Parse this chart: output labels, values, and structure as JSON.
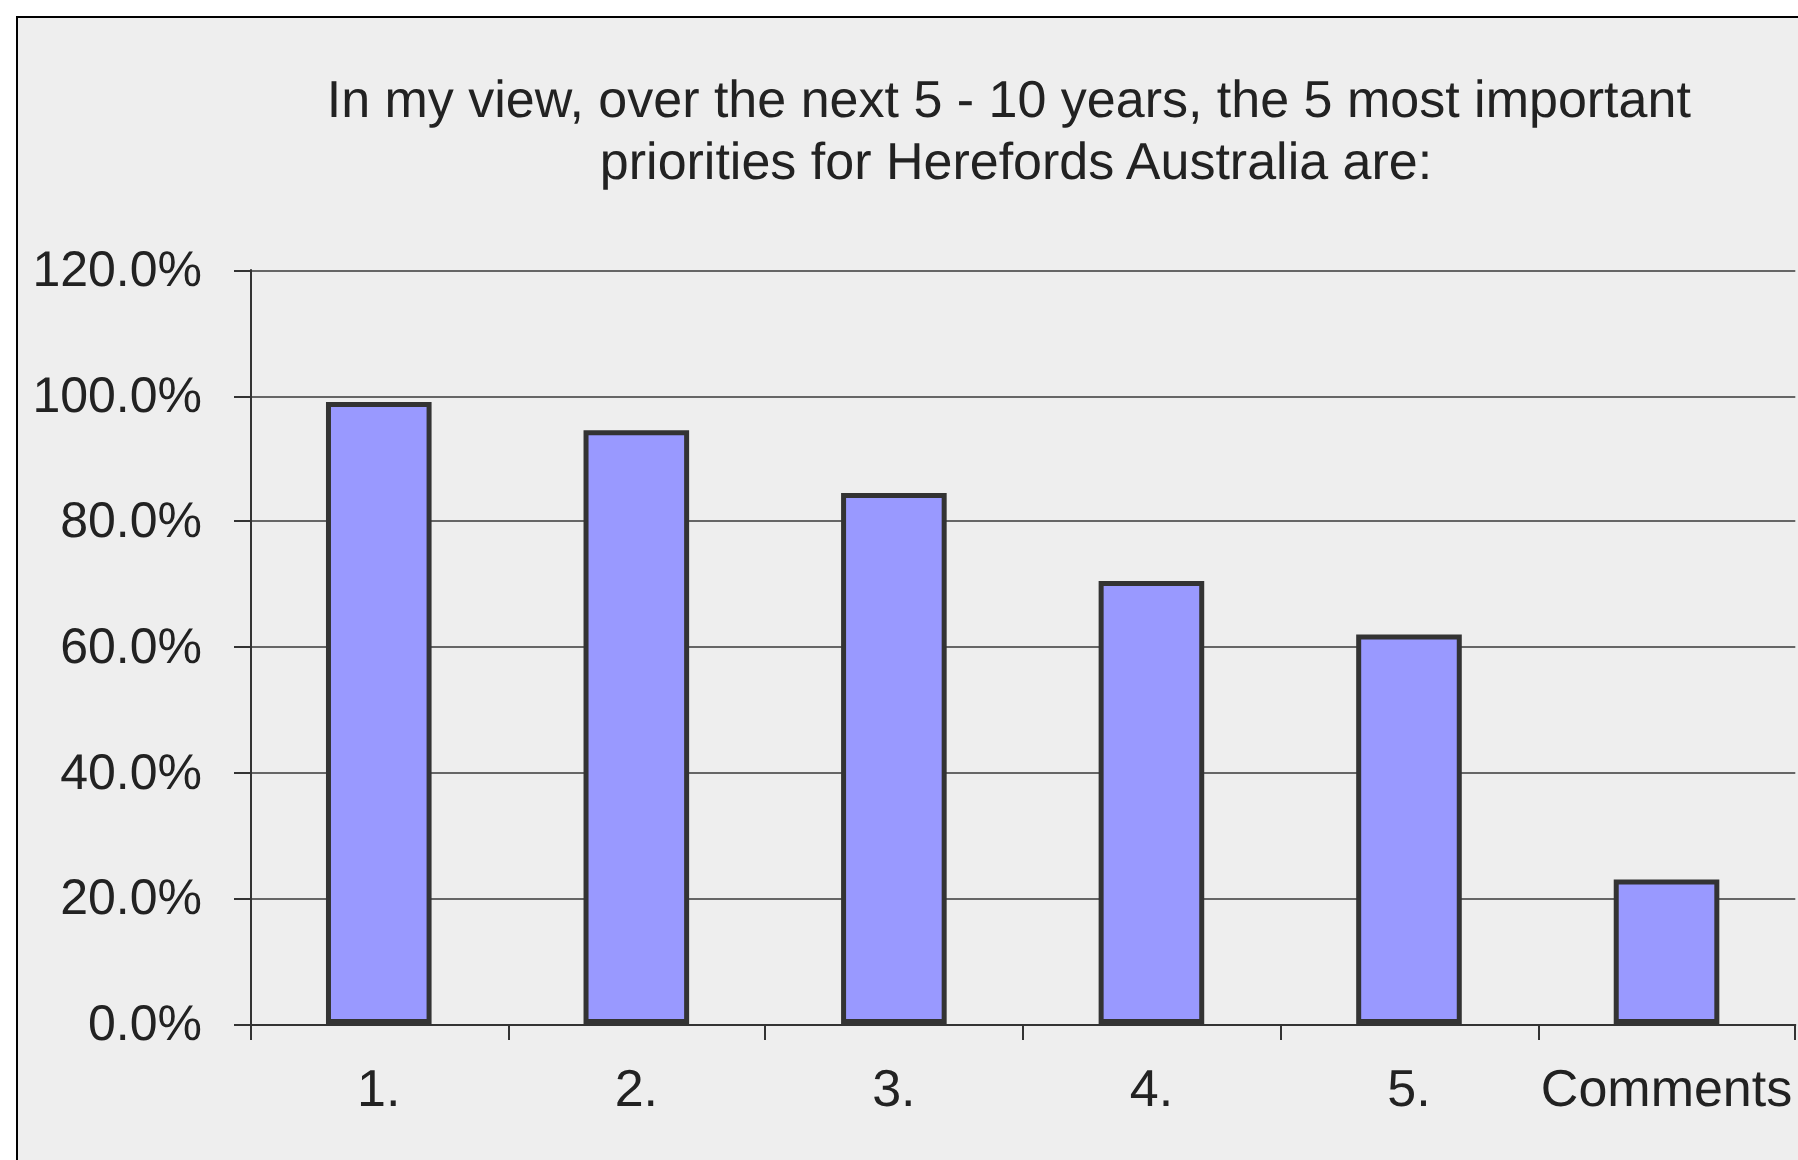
{
  "chart_data": {
    "type": "bar",
    "title": "In my view, over the next 5 - 10 years, the 5 most important priorities for Herefords Australia are:",
    "categories": [
      "1.",
      "2.",
      "3.",
      "4.",
      "5.",
      "Comments"
    ],
    "values": [
      99.0,
      94.5,
      84.5,
      70.5,
      62.0,
      23.0
    ],
    "color": "#9999ff",
    "ylim": [
      0,
      120
    ],
    "yticks": [
      {
        "value": 0,
        "label": "0.0%"
      },
      {
        "value": 20,
        "label": "20.0%"
      },
      {
        "value": 40,
        "label": "40.0%"
      },
      {
        "value": 60,
        "label": "60.0%"
      },
      {
        "value": 80,
        "label": "80.0%"
      },
      {
        "value": 100,
        "label": "100.0%"
      },
      {
        "value": 120,
        "label": "120.0%"
      }
    ],
    "grid": "y"
  }
}
